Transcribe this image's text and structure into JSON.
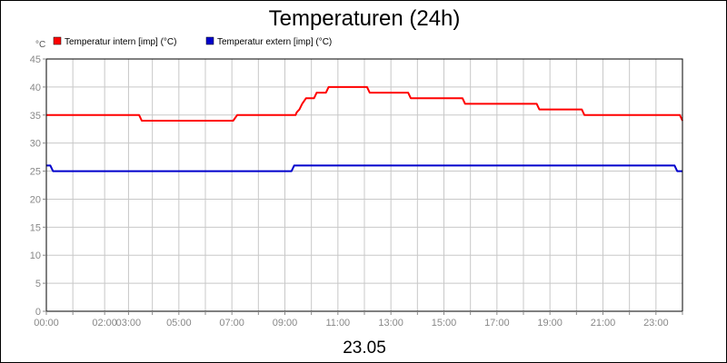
{
  "chart_data": {
    "type": "line",
    "title": "Temperaturen (24h)",
    "y_unit_label": "°C",
    "xlabel": "23.05",
    "ylim": [
      0,
      45
    ],
    "yticks": [
      0,
      5,
      10,
      15,
      20,
      25,
      30,
      35,
      40,
      45
    ],
    "xlim_hours": [
      0,
      24
    ],
    "x_ticks": [
      {
        "hour": 0,
        "label": "00:00"
      },
      {
        "hour": 2.2,
        "label": "02:00"
      },
      {
        "hour": 3.1,
        "label": "03:00"
      },
      {
        "hour": 5.0,
        "label": "05:00"
      },
      {
        "hour": 7.0,
        "label": "07:00"
      },
      {
        "hour": 9.0,
        "label": "09:00"
      },
      {
        "hour": 11.0,
        "label": "11:00"
      },
      {
        "hour": 13.0,
        "label": "13:00"
      },
      {
        "hour": 15.0,
        "label": "15:00"
      },
      {
        "hour": 17.0,
        "label": "17:00"
      },
      {
        "hour": 19.0,
        "label": "19:00"
      },
      {
        "hour": 21.0,
        "label": "21:00"
      },
      {
        "hour": 23.0,
        "label": "23:00"
      }
    ],
    "x_minor_ticks": [
      0,
      1,
      2.2,
      3.1,
      4,
      5,
      6,
      7,
      8,
      9,
      10,
      11,
      12,
      13,
      14,
      15,
      16,
      17,
      18,
      19,
      20,
      21,
      22,
      23,
      24
    ],
    "grid": true,
    "legend_position": "top-left",
    "series": [
      {
        "name": "Temperatur intern [imp] (°C)",
        "color": "#ff0000",
        "points": [
          [
            0,
            35
          ],
          [
            3.5,
            35
          ],
          [
            3.6,
            34
          ],
          [
            7.05,
            34
          ],
          [
            7.2,
            35
          ],
          [
            9.4,
            35
          ],
          [
            9.45,
            35.5
          ],
          [
            9.55,
            36
          ],
          [
            9.65,
            37
          ],
          [
            9.8,
            38
          ],
          [
            10.1,
            38
          ],
          [
            10.2,
            39
          ],
          [
            10.55,
            39
          ],
          [
            10.65,
            40
          ],
          [
            12.1,
            40
          ],
          [
            12.2,
            39
          ],
          [
            13.65,
            39
          ],
          [
            13.75,
            38
          ],
          [
            15.7,
            38
          ],
          [
            15.8,
            37
          ],
          [
            18.5,
            37
          ],
          [
            18.6,
            36
          ],
          [
            20.2,
            36
          ],
          [
            20.3,
            35
          ],
          [
            23.9,
            35
          ],
          [
            24,
            34
          ]
        ]
      },
      {
        "name": "Temperatur extern [imp] (°C)",
        "color": "#0000cc",
        "points": [
          [
            0,
            26
          ],
          [
            0.15,
            26
          ],
          [
            0.25,
            25
          ],
          [
            9.25,
            25
          ],
          [
            9.35,
            26
          ],
          [
            23.7,
            26
          ],
          [
            23.8,
            25
          ],
          [
            24,
            25
          ]
        ]
      }
    ]
  }
}
